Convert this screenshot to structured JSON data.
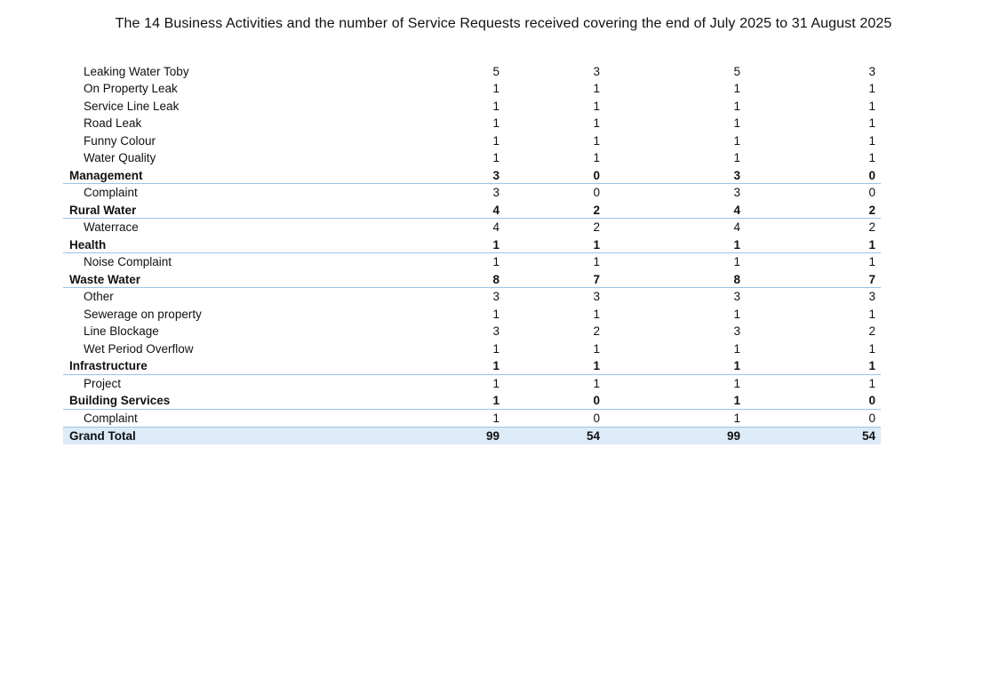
{
  "title": "The 14 Business Activities and the number of Service Requests received covering the end of July 2025 to 31 August 2025",
  "rows": [
    {
      "label": "Leaking Water Toby",
      "level": "detail",
      "values": [
        "5",
        "3",
        "5",
        "3"
      ]
    },
    {
      "label": "On Property Leak",
      "level": "detail",
      "values": [
        "1",
        "1",
        "1",
        "1"
      ]
    },
    {
      "label": "Service Line Leak",
      "level": "detail",
      "values": [
        "1",
        "1",
        "1",
        "1"
      ]
    },
    {
      "label": "Road Leak",
      "level": "detail",
      "values": [
        "1",
        "1",
        "1",
        "1"
      ]
    },
    {
      "label": "Funny Colour",
      "level": "detail",
      "values": [
        "1",
        "1",
        "1",
        "1"
      ]
    },
    {
      "label": "Water Quality",
      "level": "detail",
      "values": [
        "1",
        "1",
        "1",
        "1"
      ]
    },
    {
      "label": "Management",
      "level": "group",
      "values": [
        "3",
        "0",
        "3",
        "0"
      ]
    },
    {
      "label": "Complaint",
      "level": "detail",
      "values": [
        "3",
        "0",
        "3",
        "0"
      ]
    },
    {
      "label": "Rural Water",
      "level": "group",
      "values": [
        "4",
        "2",
        "4",
        "2"
      ]
    },
    {
      "label": "Waterrace",
      "level": "detail",
      "values": [
        "4",
        "2",
        "4",
        "2"
      ]
    },
    {
      "label": "Health",
      "level": "group",
      "values": [
        "1",
        "1",
        "1",
        "1"
      ]
    },
    {
      "label": "Noise Complaint",
      "level": "detail",
      "values": [
        "1",
        "1",
        "1",
        "1"
      ]
    },
    {
      "label": "Waste Water",
      "level": "group",
      "values": [
        "8",
        "7",
        "8",
        "7"
      ]
    },
    {
      "label": "Other",
      "level": "detail",
      "values": [
        "3",
        "3",
        "3",
        "3"
      ]
    },
    {
      "label": "Sewerage on property",
      "level": "detail",
      "values": [
        "1",
        "1",
        "1",
        "1"
      ]
    },
    {
      "label": "Line Blockage",
      "level": "detail",
      "values": [
        "3",
        "2",
        "3",
        "2"
      ]
    },
    {
      "label": "Wet Period Overflow",
      "level": "detail",
      "values": [
        "1",
        "1",
        "1",
        "1"
      ]
    },
    {
      "label": "Infrastructure",
      "level": "group",
      "values": [
        "1",
        "1",
        "1",
        "1"
      ]
    },
    {
      "label": "Project",
      "level": "detail",
      "values": [
        "1",
        "1",
        "1",
        "1"
      ]
    },
    {
      "label": "Building Services",
      "level": "group",
      "values": [
        "1",
        "0",
        "1",
        "0"
      ]
    },
    {
      "label": "Complaint",
      "level": "detail",
      "values": [
        "1",
        "0",
        "1",
        "0"
      ]
    },
    {
      "label": "Grand Total",
      "level": "total",
      "values": [
        "99",
        "54",
        "99",
        "54"
      ]
    }
  ],
  "colors": {
    "group_rule": "#9dc3e6",
    "total_fill": "#dcebf7"
  }
}
